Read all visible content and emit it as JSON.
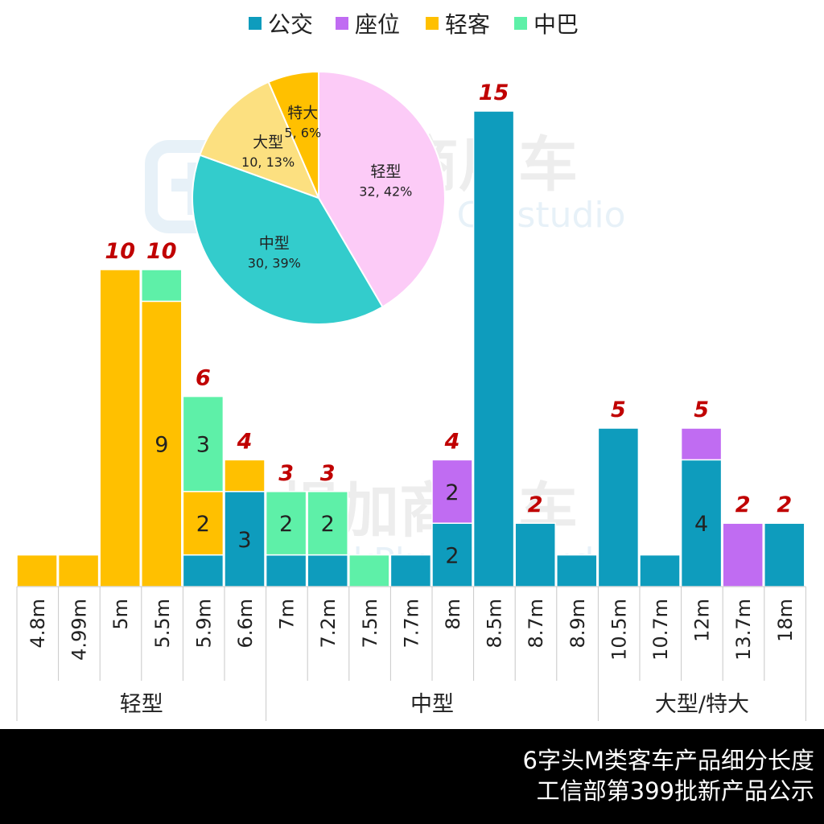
{
  "colors": {
    "公交": "#0e9cbd",
    "座位": "#c06cf2",
    "轻客": "#ffc000",
    "中巴": "#5ef0a8",
    "total_label": "#c00000",
    "pie_light": "#fccbf7",
    "pie_medium": "#33cccc",
    "pie_large": "#fce080",
    "pie_xl": "#ffc000"
  },
  "watermark": {
    "cn": "提加商用车",
    "en": "TruckPlus CV studio"
  },
  "chart_data": {
    "type": "bar",
    "stacked": true,
    "categories": [
      "4.8m",
      "4.99m",
      "5m",
      "5.5m",
      "5.9m",
      "6.6m",
      "7m",
      "7.2m",
      "7.5m",
      "7.7m",
      "8m",
      "8.5m",
      "8.7m",
      "8.9m",
      "10.5m",
      "10.7m",
      "12m",
      "13.7m",
      "18m"
    ],
    "groups": [
      {
        "label": "轻型",
        "categories": [
          "4.8m",
          "4.99m",
          "5m",
          "5.5m",
          "5.9m",
          "6.6m"
        ]
      },
      {
        "label": "中型",
        "categories": [
          "7m",
          "7.2m",
          "7.5m",
          "7.7m",
          "8m",
          "8.5m",
          "8.7m",
          "8.9m"
        ]
      },
      {
        "label": "大型/特大",
        "categories": [
          "10.5m",
          "10.7m",
          "12m",
          "13.7m",
          "18m"
        ]
      }
    ],
    "series": [
      {
        "name": "公交",
        "values": [
          0,
          0,
          0,
          0,
          1,
          3,
          1,
          1,
          0,
          1,
          2,
          15,
          2,
          1,
          5,
          1,
          4,
          0,
          2
        ]
      },
      {
        "name": "座位",
        "values": [
          0,
          0,
          0,
          0,
          0,
          0,
          0,
          0,
          0,
          0,
          2,
          0,
          0,
          0,
          0,
          0,
          1,
          2,
          0
        ]
      },
      {
        "name": "轻客",
        "values": [
          1,
          1,
          10,
          9,
          2,
          1,
          0,
          0,
          0,
          0,
          0,
          0,
          0,
          0,
          0,
          0,
          0,
          0,
          0
        ]
      },
      {
        "name": "中巴",
        "values": [
          0,
          0,
          0,
          1,
          3,
          0,
          2,
          2,
          1,
          0,
          0,
          0,
          0,
          0,
          0,
          0,
          0,
          0,
          0
        ]
      }
    ],
    "totals": [
      null,
      null,
      10,
      10,
      6,
      4,
      3,
      3,
      null,
      null,
      4,
      15,
      2,
      null,
      5,
      null,
      5,
      2,
      2
    ],
    "segment_labels": [
      {
        "category": "5.5m",
        "series": "轻客",
        "text": "9"
      },
      {
        "category": "5.9m",
        "series": "中巴",
        "text": "3"
      },
      {
        "category": "5.9m",
        "series": "轻客",
        "text": "2"
      },
      {
        "category": "6.6m",
        "series": "公交",
        "text": "3"
      },
      {
        "category": "7m",
        "series": "中巴",
        "text": "2"
      },
      {
        "category": "7.2m",
        "series": "中巴",
        "text": "2"
      },
      {
        "category": "8m",
        "series": "座位",
        "text": "2"
      },
      {
        "category": "8m",
        "series": "公交",
        "text": "2"
      },
      {
        "category": "12m",
        "series": "公交",
        "text": "4"
      }
    ],
    "ylim": [
      0,
      15
    ],
    "legend_position": "top-center",
    "pie": {
      "type": "pie",
      "slices": [
        {
          "label": "轻型",
          "value": 32,
          "percent": "42%",
          "text": "32, 42%"
        },
        {
          "label": "中型",
          "value": 30,
          "percent": "39%",
          "text": "30, 39%"
        },
        {
          "label": "大型",
          "value": 10,
          "percent": "13%",
          "text": "10, 13%"
        },
        {
          "label": "特大",
          "value": 5,
          "percent": "6%",
          "text": "5, 6%"
        }
      ]
    }
  },
  "footer": {
    "line1": "6字头M类客车产品细分长度",
    "line2": "工信部第399批新产品公示"
  }
}
